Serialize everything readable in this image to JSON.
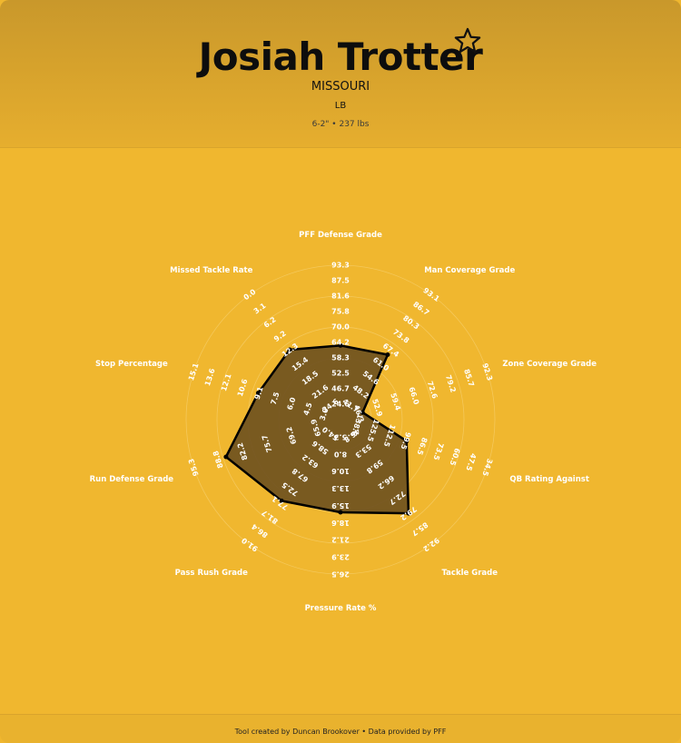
{
  "player": {
    "name": "Josiah Trotter",
    "school": "MISSOURI",
    "position": "LB",
    "height_weight": "6-2\" • 237 lbs",
    "star_icon": "star-outline-icon"
  },
  "footer": {
    "credit": "Tool created by Duncan Brookover • Data provided by PFF"
  },
  "colors": {
    "background": "#f0b72f",
    "header": "#c9982b",
    "polygon_fill": "#6f5120",
    "polygon_stroke": "#000000",
    "grid": "#f5cd6a",
    "label_text": "#ffffff"
  },
  "chart_data": {
    "type": "radar",
    "title": "",
    "rings": 5,
    "grid": true,
    "legend": "none",
    "axes": [
      {
        "label": "PFF Defense Grade",
        "ticks": [
          "24.6",
          "46.7",
          "52.5",
          "58.3",
          "64.2",
          "70.0",
          "75.8",
          "81.6",
          "87.5",
          "93.3"
        ],
        "value": 70.0
      },
      {
        "label": "Man Coverage Grade",
        "ticks": [
          "41.7",
          "48.2",
          "54.6",
          "61.0",
          "67.4",
          "73.8",
          "80.3",
          "86.7",
          "93.1"
        ],
        "value": 67.4
      },
      {
        "label": "Zone Coverage Grade",
        "ticks": [
          "46.3",
          "52.9",
          "59.4",
          "66.0",
          "72.6",
          "79.2",
          "85.7",
          "92.3"
        ],
        "value": 46.3
      },
      {
        "label": "QB Rating Against",
        "ticks": [
          "138.6",
          "125.5",
          "112.5",
          "99.5",
          "86.5",
          "73.5",
          "60.5",
          "47.5",
          "34.5"
        ],
        "value": 112.5
      },
      {
        "label": "Tackle Grade",
        "ticks": [
          "46.8",
          "53.3",
          "59.8",
          "66.2",
          "72.7",
          "79.2",
          "85.7",
          "92.2"
        ],
        "value": 79.2
      },
      {
        "label": "Pressure Rate %",
        "ticks": [
          "5.3",
          "8.0",
          "10.6",
          "13.3",
          "15.9",
          "18.6",
          "21.2",
          "23.9",
          "26.5"
        ],
        "value": 15.9
      },
      {
        "label": "Pass Rush Grade",
        "ticks": [
          "54.0",
          "58.6",
          "63.2",
          "67.8",
          "72.5",
          "77.1",
          "81.7",
          "86.4",
          "91.0"
        ],
        "value": 77.1
      },
      {
        "label": "Run Defense Grade",
        "ticks": [
          "65.9",
          "69.2",
          "75.7",
          "82.2",
          "88.8",
          "95.3"
        ],
        "value": 88.8
      },
      {
        "label": "Stop Percentage",
        "ticks": [
          "3.0",
          "4.5",
          "6.0",
          "7.5",
          "9.1",
          "10.6",
          "12.1",
          "13.6",
          "15.1"
        ],
        "value": 10.6
      },
      {
        "label": "Missed Tackle Rate",
        "ticks": [
          "24.6",
          "21.6",
          "18.5",
          "15.4",
          "12.3",
          "9.2",
          "6.2",
          "3.1",
          "0.0"
        ],
        "value": 9.2
      }
    ],
    "vertex_fractions": [
      0.48,
      0.52,
      0.15,
      0.45,
      0.75,
      0.6,
      0.65,
      0.78,
      0.56,
      0.56
    ]
  }
}
